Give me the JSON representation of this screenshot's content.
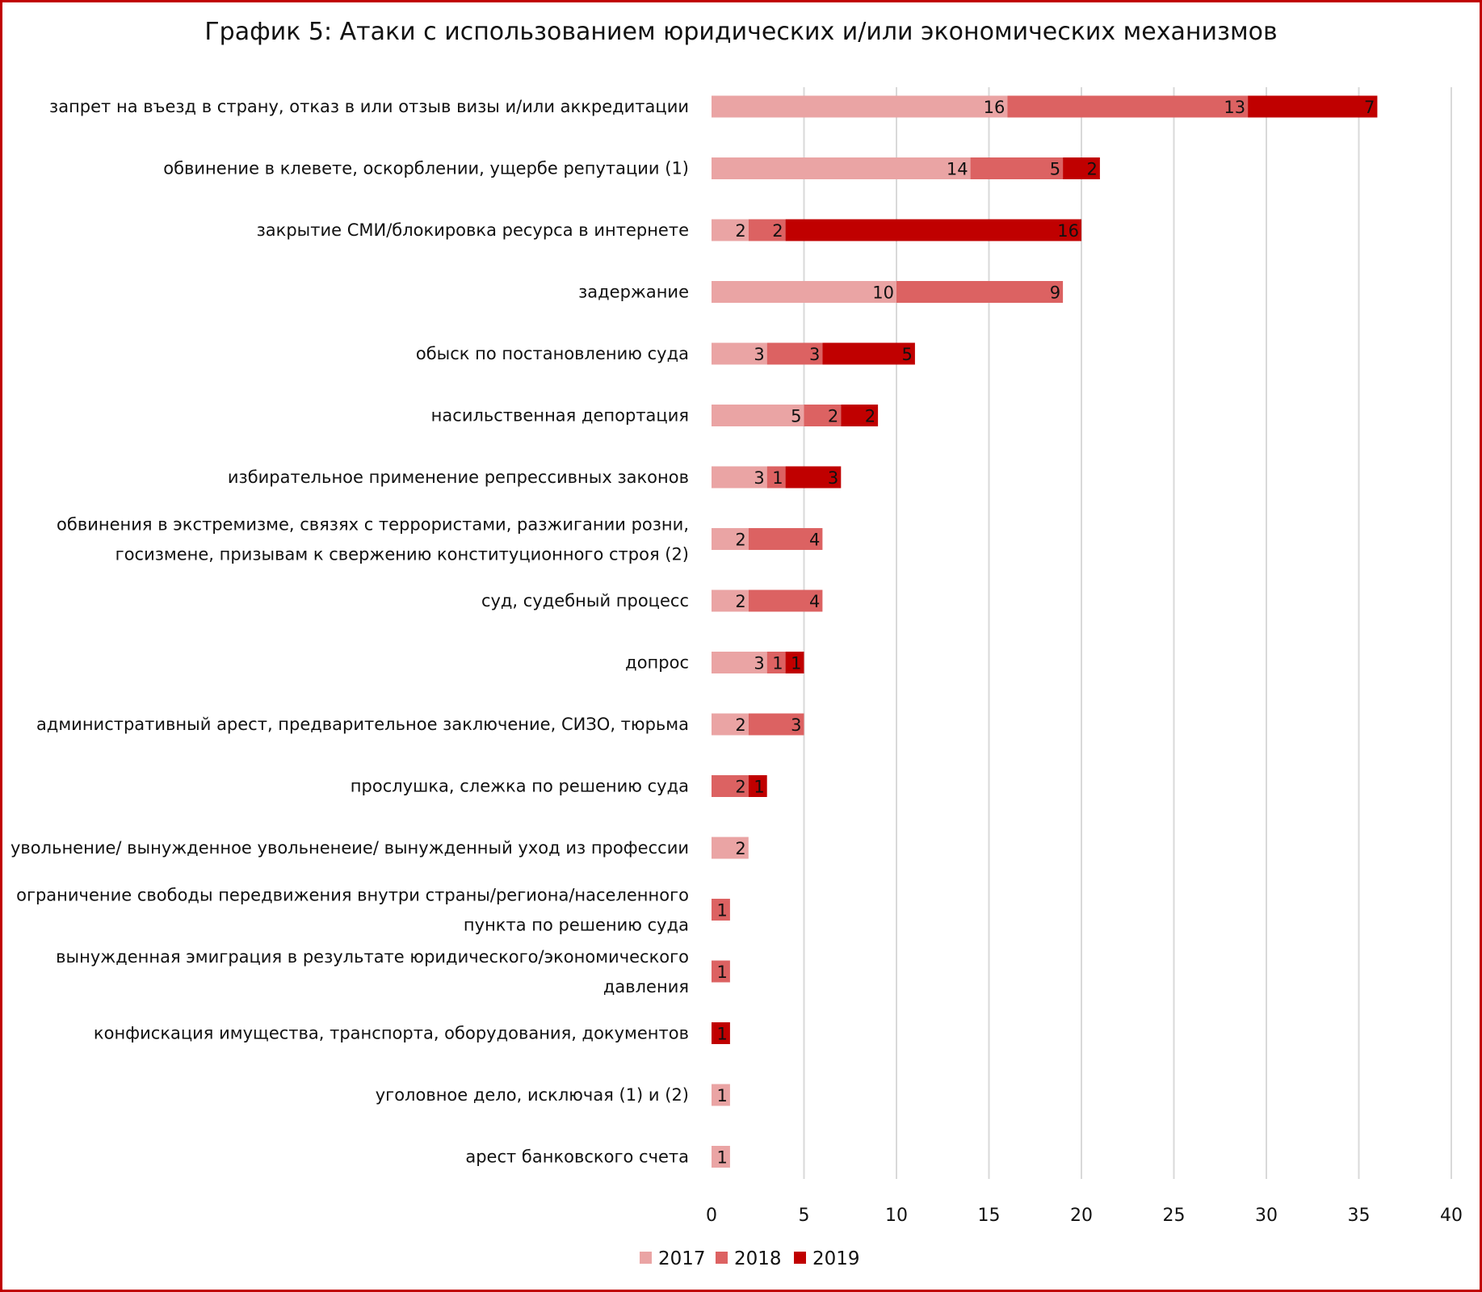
{
  "chart_data": {
    "type": "bar",
    "orientation": "horizontal",
    "stacked": true,
    "title": "График 5: Атаки с использованием юридических и/или экономических механизмов",
    "categories": [
      [
        "запрет на въезд в страну, отказ в или отзыв визы и/или аккредитации"
      ],
      [
        "обвинение в клевете, оскорблении, ущербе репутации (1)"
      ],
      [
        "закрытие СМИ/блокировка  ресурса в интернете"
      ],
      [
        "задержание"
      ],
      [
        "обыск по постановлению суда"
      ],
      [
        "насильственная депортация"
      ],
      [
        "избирательное применение репрессивных законов"
      ],
      [
        "обвинения в экстремизме, связях с террористами, разжигании розни,",
        "госизмене, призывам к свержению конституционного строя (2)"
      ],
      [
        "суд, судебный процесс"
      ],
      [
        "допрос"
      ],
      [
        "административный арест, предварительное заключение, СИЗО, тюрьма"
      ],
      [
        "прослушка, слежка по решению суда"
      ],
      [
        "увольнение/ вынужденное увольненеие/ вынужденный уход из профессии"
      ],
      [
        "ограничение свободы передвижения внутри страны/региона/населенного",
        "пункта по решению суда"
      ],
      [
        "вынужденная эмиграция в результате юридического/экономического",
        "давления"
      ],
      [
        "конфискация имущества, транспорта, оборудования, документов"
      ],
      [
        "уголовное дело, исключая (1) и (2)"
      ],
      [
        "арест банковского счета"
      ]
    ],
    "series": [
      {
        "name": "2017",
        "color": "#eaa4a4",
        "values": [
          16,
          14,
          2,
          10,
          3,
          5,
          3,
          2,
          2,
          3,
          2,
          0,
          2,
          0,
          0,
          0,
          1,
          1
        ]
      },
      {
        "name": "2018",
        "color": "#dc6262",
        "values": [
          13,
          5,
          2,
          9,
          3,
          2,
          1,
          4,
          4,
          1,
          3,
          2,
          0,
          1,
          1,
          0,
          0,
          0
        ]
      },
      {
        "name": "2019",
        "color": "#c00000",
        "values": [
          7,
          2,
          16,
          0,
          5,
          2,
          3,
          0,
          0,
          1,
          0,
          1,
          0,
          0,
          0,
          1,
          0,
          0
        ]
      }
    ],
    "xlim": [
      0,
      40
    ],
    "xticks": [
      0,
      5,
      10,
      15,
      20,
      25,
      30,
      35,
      40
    ],
    "grid": "vertical",
    "legend": "bottom"
  }
}
